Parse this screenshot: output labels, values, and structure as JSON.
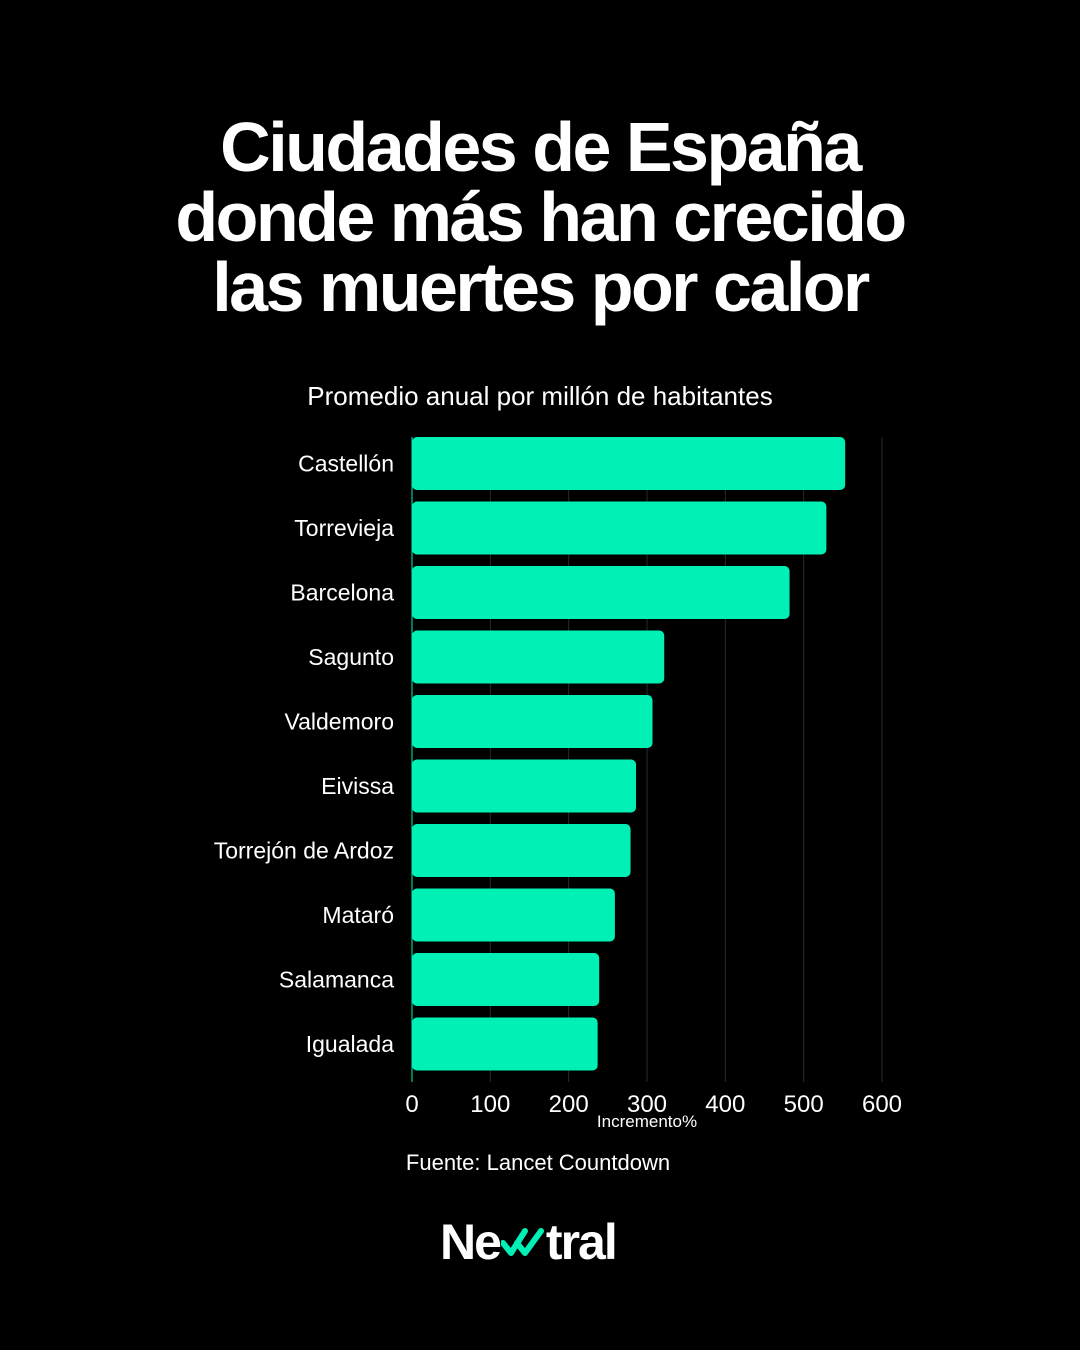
{
  "title_lines": [
    "Ciudades de España",
    "donde más han crecido",
    "las muertes por calor"
  ],
  "subtitle": "Promedio anual por millón de habitantes",
  "source": "Fuente: Lancet Countdown",
  "logo": {
    "before": "Ne",
    "after": "tral",
    "check_icon": "double-check-icon"
  },
  "colors": {
    "background": "#000000",
    "bar": "#00f0b5",
    "text": "#ffffff",
    "grid": "#2a2a2a"
  },
  "chart_data": {
    "type": "bar",
    "orientation": "horizontal",
    "categories": [
      "Castellón",
      "Torrevieja",
      "Barcelona",
      "Sagunto",
      "Valdemoro",
      "Eivissa",
      "Torrejón de Ardoz",
      "Mataró",
      "Salamanca",
      "Igualada"
    ],
    "values": [
      553,
      529,
      482,
      322,
      307,
      286,
      279,
      259,
      239,
      237
    ],
    "xlabel": "Incremento%",
    "ylabel": "",
    "xlim": [
      0,
      600
    ],
    "xticks": [
      0,
      100,
      200,
      300,
      400,
      500,
      600
    ],
    "grid": true,
    "legend": "none"
  }
}
